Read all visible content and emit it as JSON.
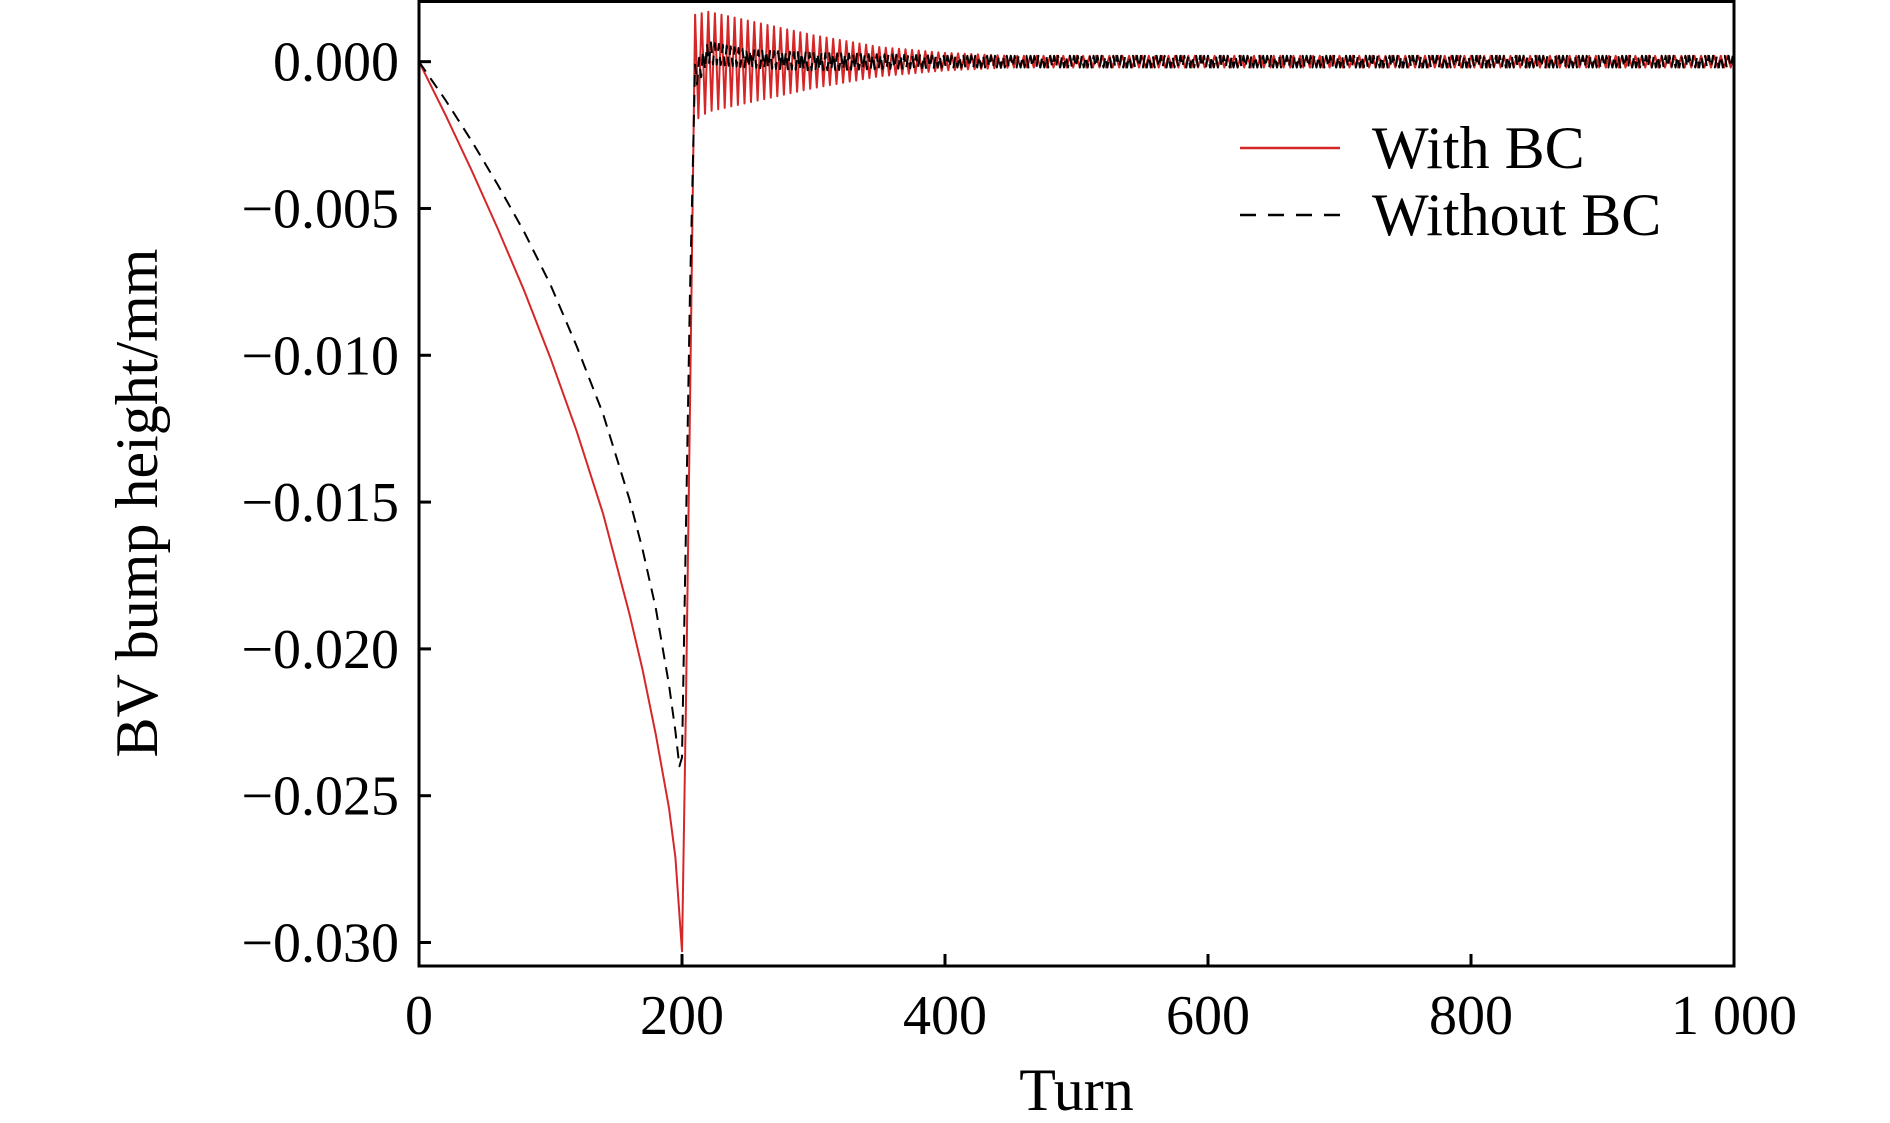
{
  "chart_data": {
    "type": "line",
    "title": "",
    "xlabel": "Turn",
    "ylabel": "BV bump height/mm",
    "xlim": [
      0,
      1000
    ],
    "ylim": [
      -0.0308,
      0.0021
    ],
    "xticks": [
      0,
      200,
      400,
      600,
      800,
      1000
    ],
    "xtick_labels": [
      "0",
      "200",
      "400",
      "600",
      "800",
      "1 000"
    ],
    "yticks": [
      0.0,
      -0.005,
      -0.01,
      -0.015,
      -0.02,
      -0.025,
      -0.03
    ],
    "ytick_labels": [
      "0.000",
      "−0.005",
      "−0.010",
      "−0.015",
      "−0.020",
      "−0.025",
      "−0.030"
    ],
    "grid": false,
    "legend_position": "top-right",
    "series": [
      {
        "name": "With BC",
        "color": "#d62728",
        "line_style": "solid",
        "x": [
          0,
          20,
          40,
          60,
          80,
          100,
          120,
          140,
          160,
          170,
          180,
          190,
          195,
          200,
          203,
          206,
          210,
          220,
          250,
          300,
          350,
          400,
          450,
          500,
          550,
          600,
          700,
          800,
          900,
          1000
        ],
        "y": [
          0.0,
          -0.0018,
          -0.0037,
          -0.0057,
          -0.0078,
          -0.0101,
          -0.0126,
          -0.0154,
          -0.0188,
          -0.0207,
          -0.0229,
          -0.0254,
          -0.0271,
          -0.0303,
          -0.022,
          -0.012,
          -0.0002,
          0.0,
          0.0,
          0.0,
          0.0,
          0.0,
          0.0,
          0.0,
          0.0,
          0.0,
          0.0,
          0.0,
          0.0,
          0.0
        ],
        "oscillation": {
          "start": 210,
          "period": 5,
          "amplitude": [
            0.0018,
            0.0014,
            0.0009,
            0.0005,
            0.0003,
            0.0002,
            0.0002,
            0.0002,
            0.0002,
            0.0002
          ],
          "amplitude_x": [
            210,
            250,
            300,
            350,
            400,
            450,
            500,
            600,
            800,
            1000
          ]
        }
      },
      {
        "name": "Without BC",
        "color": "#000000",
        "line_style": "dashed",
        "x": [
          0,
          20,
          40,
          60,
          80,
          100,
          120,
          140,
          160,
          170,
          180,
          190,
          195,
          198,
          200,
          203,
          206,
          210,
          220,
          250,
          300,
          400,
          500,
          600,
          700,
          800,
          900,
          1000
        ],
        "y": [
          0.0,
          -0.0013,
          -0.0027,
          -0.0042,
          -0.0058,
          -0.0076,
          -0.0097,
          -0.012,
          -0.0149,
          -0.0166,
          -0.0186,
          -0.0212,
          -0.0228,
          -0.024,
          -0.0237,
          -0.016,
          -0.008,
          -0.0005,
          0.0003,
          0.0001,
          0.0,
          0.0,
          0.0,
          0.0,
          0.0,
          0.0,
          0.0,
          0.0
        ],
        "oscillation": {
          "start": 210,
          "period": 3,
          "amplitude": [
            0.0004,
            0.0003,
            0.0003,
            0.0002,
            0.0002,
            0.0002,
            0.0002
          ],
          "amplitude_x": [
            210,
            250,
            300,
            400,
            600,
            800,
            1000
          ]
        }
      }
    ]
  }
}
